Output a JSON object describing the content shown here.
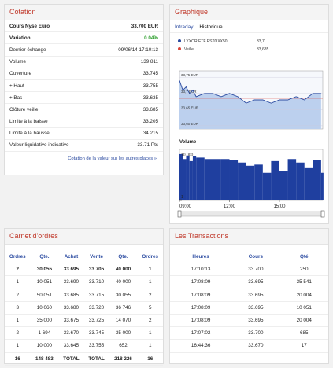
{
  "cotation": {
    "title": "Cotation",
    "rows": [
      [
        "Cours Nyse Euro",
        "33.700 EUR"
      ],
      [
        "Variation",
        "0.04%"
      ],
      [
        "Dernier échange",
        "09/06/14 17:10:13"
      ],
      [
        "Volume",
        "139 811"
      ],
      [
        "Ouverture",
        "33.745"
      ],
      [
        "+ Haut",
        "33.755"
      ],
      [
        "+ Bas",
        "33.635"
      ],
      [
        "Clôture veille",
        "33.685"
      ],
      [
        "Limite à la baisse",
        "33.205"
      ],
      [
        "Limite à la hausse",
        "34.215"
      ],
      [
        "Valeur liquidative indicative",
        "33.71 Pts"
      ]
    ],
    "link": "Cotation de la valeur sur les autres places »"
  },
  "graphique": {
    "title": "Graphique",
    "tabs": [
      "Intraday",
      "Historique"
    ],
    "legend": [
      {
        "name": "LYXOR ETF ESTOXX50",
        "value_label": "33,7",
        "color": "#2a4aa0"
      },
      {
        "name": "Veille",
        "value_label": "33,685",
        "color": "#d9453a"
      }
    ],
    "price": {
      "x": [
        9,
        9.2,
        9.4,
        9.6,
        9.8,
        10,
        10.5,
        11,
        11.5,
        12,
        12.5,
        13,
        13.5,
        14,
        14.5,
        15,
        15.5,
        16,
        16.5,
        17,
        17.5
      ],
      "values": [
        33.74,
        33.71,
        33.72,
        33.7,
        33.71,
        33.69,
        33.7,
        33.7,
        33.69,
        33.7,
        33.69,
        33.67,
        33.68,
        33.68,
        33.67,
        33.68,
        33.68,
        33.69,
        33.68,
        33.7,
        33.7
      ],
      "color": "#2a4aa0",
      "fill": "#bcd0ee",
      "reference": 33.685,
      "reference_color": "#d9453a",
      "xlim": [
        9,
        17.6
      ],
      "ylim": [
        33.59,
        33.77
      ],
      "yticks": [
        {
          "value": 33.75,
          "label": "33,75 EUR"
        },
        {
          "value": 33.7,
          "label": "33,7 EUR"
        },
        {
          "value": 33.65,
          "label": "33,65 EUR"
        },
        {
          "value": 33.6,
          "label": "33,60 EUR"
        }
      ]
    },
    "volume": {
      "title": "Volume",
      "x": [
        9,
        9.2,
        9.4,
        9.6,
        9.8,
        10,
        10.5,
        11,
        11.5,
        12,
        12.5,
        13,
        13.5,
        14,
        14.5,
        15,
        15.5,
        16,
        16.5,
        17,
        17.5
      ],
      "values": [
        8000,
        3000,
        6000,
        2000,
        5000,
        4000,
        3000,
        3000,
        3000,
        2500,
        1500,
        800,
        1000,
        200,
        2000,
        300,
        3000,
        1500,
        500,
        2500,
        200
      ],
      "color": "#1f3f9f",
      "log_scale": true,
      "ylim": [
        1,
        20000
      ],
      "yticks": [
        {
          "value": 10000,
          "label": "10 000"
        },
        1
      ]
    },
    "xticks": [
      {
        "value": 9,
        "label": "09:00"
      },
      {
        "value": 12,
        "label": "12:00"
      },
      {
        "value": 15,
        "label": "15:00"
      }
    ]
  },
  "carnet": {
    "title": "Carnet d'ordres",
    "headers": [
      "Ordres",
      "Qte.",
      "Achat",
      "Vente",
      "Qte.",
      "Ordres"
    ],
    "rows": [
      [
        "2",
        "30 055",
        "33.695",
        "33.705",
        "40 000",
        "1"
      ],
      [
        "1",
        "10 051",
        "33.690",
        "33.710",
        "40 000",
        "1"
      ],
      [
        "2",
        "50 051",
        "33.685",
        "33.715",
        "30 055",
        "2"
      ],
      [
        "3",
        "10 060",
        "33.680",
        "33.720",
        "36 746",
        "5"
      ],
      [
        "1",
        "35 000",
        "33.675",
        "33.725",
        "14 070",
        "2"
      ],
      [
        "2",
        "1 694",
        "33.670",
        "33.745",
        "35 000",
        "1"
      ],
      [
        "1",
        "10 000",
        "33.645",
        "33.755",
        "652",
        "1"
      ],
      [
        "16",
        "148 483",
        "TOTAL",
        "TOTAL",
        "218 226",
        "16"
      ]
    ]
  },
  "transactions": {
    "title": "Les Transactions",
    "headers": [
      "Heures",
      "Cours",
      "Qté"
    ],
    "rows": [
      [
        "17:10:13",
        "33.700",
        "250"
      ],
      [
        "17:08:09",
        "33.695",
        "35 541"
      ],
      [
        "17:08:09",
        "33.695",
        "20 004"
      ],
      [
        "17:08:09",
        "33.695",
        "10 051"
      ],
      [
        "17:08:09",
        "33.695",
        "20 004"
      ],
      [
        "17:07:02",
        "33.700",
        "685"
      ],
      [
        "16:44:36",
        "33.670",
        "17"
      ]
    ]
  }
}
